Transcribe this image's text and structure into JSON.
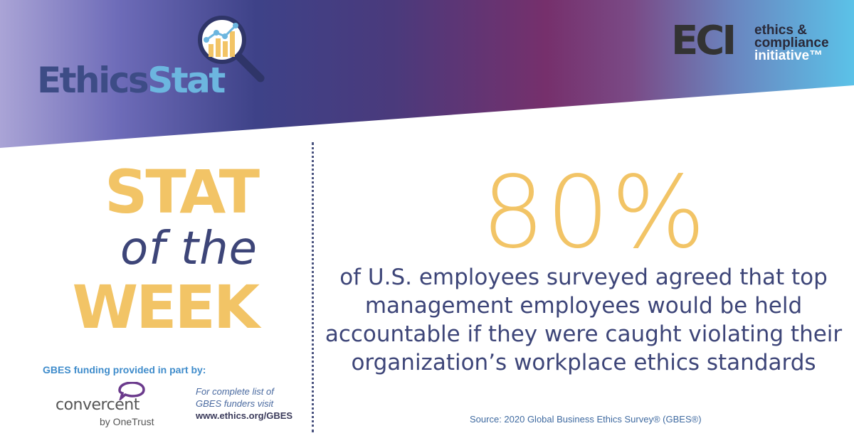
{
  "branding": {
    "ethicsstat_part1": "Ethics",
    "ethicsstat_part2": "Stat",
    "eci_letters": "ECI",
    "eci_line1": "ethics &",
    "eci_line2": "compliance",
    "eci_line3": "initiative™",
    "icon": "magnifier-bar-chart-icon"
  },
  "headline": {
    "line1": "STAT",
    "line2": "of the",
    "line3": "WEEK"
  },
  "stat": {
    "value": "80%",
    "description": "of U.S. employees surveyed agreed that top management employees would be held accountable if they were caught violating their organization’s workplace ethics standards",
    "source": "Source: 2020 Global Business Ethics Survey® (GBES®)"
  },
  "sponsor": {
    "funding_label": "GBES funding provided in part by:",
    "name": "convercent",
    "byline": "by OneTrust",
    "funders_line1": "For complete list of",
    "funders_line2": "GBES funders visit",
    "funders_url": "www.ethics.org/GBES",
    "icon": "speech-bubble-icon"
  },
  "colors": {
    "gold": "#f2c466",
    "navy": "#3d4578",
    "gradient_left": "#a9a3d4",
    "gradient_mid": "#3e3f8a",
    "gradient_plum": "#742d68",
    "gradient_right": "#5bc0e6"
  }
}
